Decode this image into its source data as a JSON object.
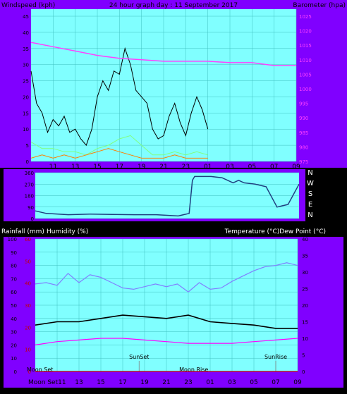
{
  "chart_data": [
    {
      "id": "wind-baro",
      "type": "line",
      "title": "24 hour graph day : 11 September 2017",
      "left_label": "Windspeed (kph)",
      "right_label": "Barometer (hpa)",
      "x_ticks": [
        "11",
        "13",
        "15",
        "17",
        "19",
        "21",
        "23",
        "01",
        "03",
        "05",
        "07",
        "09"
      ],
      "y_left_ticks": [
        "0",
        "5",
        "10",
        "15",
        "20",
        "25",
        "30",
        "35",
        "40",
        "45"
      ],
      "y_left_range": [
        0,
        45
      ],
      "y_right_ticks": [
        "975",
        "980",
        "985",
        "990",
        "995",
        "1000",
        "1005",
        "1010",
        "1015",
        "1020",
        "1025"
      ],
      "y_right_range": [
        975,
        1025
      ],
      "grid": true,
      "colors": {
        "panel": "#8000ff",
        "plot": "#80ffff",
        "gust": "#000000",
        "wind": "#80ff80",
        "ave": "#ff8000",
        "baro": "#ff40ff"
      },
      "series": [
        {
          "key": "gust",
          "x": [
            9,
            9.5,
            10,
            10.5,
            11,
            11.5,
            12,
            12.5,
            13,
            13.5,
            14,
            14.5,
            15,
            15.5,
            16,
            16.5,
            17,
            17.5,
            18,
            18.5,
            19,
            19.5,
            20,
            20.5,
            21,
            21.5,
            22,
            22.5,
            23,
            23.5,
            24,
            24.5,
            25
          ],
          "values": [
            28,
            18,
            15,
            9,
            13,
            11,
            14,
            9,
            10,
            7,
            5,
            10,
            20,
            25,
            22,
            28,
            27,
            35,
            30,
            22,
            20,
            18,
            10,
            7,
            8,
            14,
            18,
            12,
            8,
            15,
            20,
            16,
            10
          ]
        },
        {
          "key": "wind",
          "x": [
            9,
            10,
            11,
            12,
            13,
            14,
            15,
            16,
            17,
            18,
            19,
            20,
            21,
            22,
            23,
            24,
            25
          ],
          "values": [
            6,
            4,
            4,
            3,
            3,
            2,
            4,
            5,
            7,
            8,
            5,
            2,
            2,
            3,
            2,
            3,
            2
          ]
        },
        {
          "key": "ave",
          "x": [
            9,
            10,
            11,
            12,
            13,
            14,
            15,
            16,
            17,
            18,
            19,
            20,
            21,
            22,
            23,
            24,
            25
          ],
          "values": [
            1,
            2,
            1,
            2,
            1,
            2,
            3,
            4,
            3,
            2,
            1,
            1,
            1,
            2,
            1,
            1,
            1
          ]
        },
        {
          "key": "baro",
          "x": [
            9,
            11,
            13,
            15,
            17,
            19,
            21,
            23,
            25,
            27,
            29,
            31,
            33
          ],
          "values": [
            1016,
            1014.5,
            1013,
            1011.5,
            1010.5,
            1010,
            1009.5,
            1009.5,
            1009.5,
            1009,
            1009,
            1008,
            1008
          ]
        }
      ]
    },
    {
      "id": "wind-dir",
      "type": "line",
      "y_ticks": [
        "0",
        "90",
        "180",
        "270",
        "360"
      ],
      "y_range": [
        0,
        360
      ],
      "compass": [
        "N",
        "W",
        "S",
        "E",
        "N"
      ],
      "colors": {
        "panel": "#8000ff",
        "plot": "#80ffff",
        "line": "#204080"
      },
      "series": [
        {
          "key": "dir",
          "x": [
            9,
            10,
            12,
            14,
            16,
            18,
            20,
            22,
            23,
            23.3,
            23.5,
            24,
            25,
            26,
            27,
            27.5,
            28,
            29,
            30,
            31,
            31.5,
            32,
            33
          ],
          "values": [
            60,
            40,
            30,
            35,
            32,
            30,
            30,
            20,
            40,
            300,
            330,
            330,
            330,
            320,
            280,
            300,
            280,
            270,
            250,
            90,
            100,
            110,
            270
          ]
        }
      ]
    },
    {
      "id": "temp-hum",
      "type": "line",
      "left_label": "Rainfall (mm)",
      "left_label2": "Humidity (%)",
      "right_label": "Temperature (°C)Dew Point (°C)",
      "x_ticks": [
        "11",
        "13",
        "15",
        "17",
        "19",
        "21",
        "23",
        "01",
        "03",
        "05",
        "07",
        "09"
      ],
      "y_left_ticks": [
        "0",
        "10",
        "20",
        "30",
        "40",
        "50",
        "60",
        "70",
        "80",
        "90",
        "100"
      ],
      "y_left_range": [
        0,
        100
      ],
      "y_rain_ticks": [
        "0",
        "10",
        "20",
        "30",
        "40",
        "50",
        "60"
      ],
      "y_right_ticks": [
        "0",
        "5",
        "10",
        "15",
        "20",
        "25",
        "30",
        "35",
        "40"
      ],
      "y_right_range": [
        0,
        40
      ],
      "annotations": {
        "moon_set_bottom": "Moon Set",
        "moon_set_axis": "Moon Set",
        "sunset": "SunSet",
        "moonrise": "Moon Rise",
        "sunrise": "SunRise"
      },
      "grid": true,
      "colors": {
        "panel": "#8000ff",
        "plot": "#80ffff",
        "humidity": "#8080ff",
        "temp": "#000000",
        "dew": "#ff00ff",
        "rain": "#c00000"
      },
      "series": [
        {
          "key": "humidity",
          "x": [
            9,
            10,
            11,
            12,
            13,
            14,
            15,
            16,
            17,
            18,
            19,
            20,
            21,
            22,
            23,
            24,
            25,
            26,
            27,
            28,
            29,
            30,
            31,
            32,
            33
          ],
          "values": [
            66,
            67,
            65,
            74,
            67,
            73,
            71,
            67,
            63,
            62,
            64,
            66,
            64,
            66,
            60,
            67,
            62,
            63,
            68,
            72,
            76,
            79,
            80,
            82,
            80
          ]
        },
        {
          "key": "temp",
          "x": [
            9,
            11,
            13,
            15,
            17,
            19,
            21,
            23,
            25,
            27,
            29,
            31,
            33
          ],
          "values": [
            14,
            15,
            15,
            16,
            17,
            16.5,
            16,
            17,
            15,
            14.5,
            14,
            13,
            13
          ]
        },
        {
          "key": "dew",
          "x": [
            9,
            11,
            13,
            15,
            17,
            19,
            21,
            23,
            25,
            27,
            29,
            31,
            33
          ],
          "values": [
            8,
            9,
            9.5,
            10,
            10,
            9.5,
            9,
            8.5,
            8.5,
            8.5,
            9,
            9.5,
            10
          ]
        },
        {
          "key": "rain",
          "x": [
            9,
            33
          ],
          "values": [
            0,
            0
          ]
        }
      ]
    }
  ]
}
